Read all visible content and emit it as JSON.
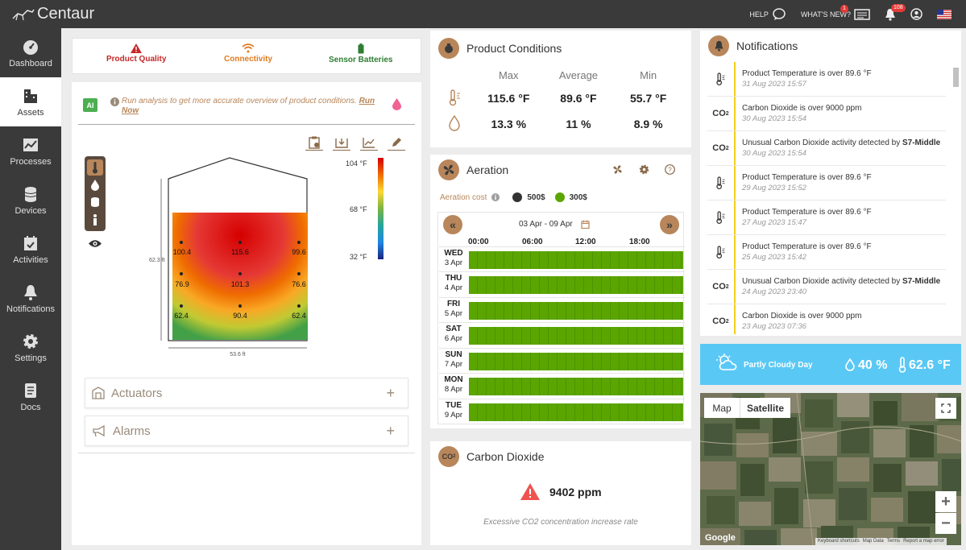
{
  "app": {
    "name": "Centaur"
  },
  "topbar": {
    "help": "HELP",
    "whats_new": "WHAT'S NEW?",
    "whats_new_badge": "1",
    "bell_badge": "108"
  },
  "sidebar": {
    "items": [
      {
        "label": "Dashboard",
        "icon": "gauge-icon"
      },
      {
        "label": "Assets",
        "icon": "building-icon"
      },
      {
        "label": "Processes",
        "icon": "chart-line-icon"
      },
      {
        "label": "Devices",
        "icon": "database-icon"
      },
      {
        "label": "Activities",
        "icon": "calendar-check-icon"
      },
      {
        "label": "Notifications",
        "icon": "bell-icon"
      },
      {
        "label": "Settings",
        "icon": "gear-icon"
      },
      {
        "label": "Docs",
        "icon": "document-icon"
      }
    ]
  },
  "kpis": [
    {
      "label": "Product Quality",
      "color": "#c62828"
    },
    {
      "label": "Connectivity",
      "color": "#e07a1f"
    },
    {
      "label": "Sensor Batteries",
      "color": "#2e7d32"
    }
  ],
  "ai": {
    "badge": "AI",
    "text": "Run analysis to get more accurate overview of product conditions.",
    "link": "Run Now"
  },
  "heatmap": {
    "legend_max": "104 °F",
    "legend_mid": "68 °F",
    "legend_min": "32 °F",
    "height_label": "62.3 ft",
    "width_label": "53.6 ft",
    "readings": [
      "100.4",
      "115.6",
      "99.6",
      "76.9",
      "101.3",
      "76.6",
      "62.4",
      "90.4",
      "62.4"
    ]
  },
  "accordions": {
    "actuators": "Actuators",
    "alarms": "Alarms"
  },
  "product_conditions": {
    "title": "Product Conditions",
    "headers": [
      "Max",
      "Average",
      "Min"
    ],
    "temperature": [
      "115.6 °F",
      "89.6 °F",
      "55.7 °F"
    ],
    "moisture": [
      "13.3 %",
      "11 %",
      "8.9 %"
    ]
  },
  "aeration": {
    "title": "Aeration",
    "cost_label": "Aeration cost",
    "legend": [
      {
        "label": "500$",
        "color": "#333333"
      },
      {
        "label": "300$",
        "color": "#5aa500"
      }
    ],
    "range": "03 Apr - 09 Apr",
    "times": [
      "00:00",
      "06:00",
      "12:00",
      "18:00"
    ],
    "days": [
      {
        "day": "WED",
        "date": "3 Apr"
      },
      {
        "day": "THU",
        "date": "4 Apr"
      },
      {
        "day": "FRI",
        "date": "5 Apr"
      },
      {
        "day": "SAT",
        "date": "6 Apr"
      },
      {
        "day": "SUN",
        "date": "7 Apr"
      },
      {
        "day": "MON",
        "date": "8 Apr"
      },
      {
        "day": "TUE",
        "date": "9 Apr"
      }
    ]
  },
  "co2": {
    "title": "Carbon Dioxide",
    "value": "9402 ppm",
    "note": "Excessive CO2 concentration increase rate"
  },
  "notifications": {
    "title": "Notifications",
    "items": [
      {
        "type": "temp",
        "text": "Product Temperature is over 89.6 °F",
        "bold": "",
        "date": "31 Aug 2023 15:57"
      },
      {
        "type": "co2",
        "text": "Carbon Dioxide is over 9000 ppm",
        "bold": "",
        "date": "30 Aug 2023 15:54"
      },
      {
        "type": "co2",
        "text": "Unusual Carbon Dioxide activity detected by ",
        "bold": "S7-Middle",
        "date": "30 Aug 2023 15:54"
      },
      {
        "type": "temp",
        "text": "Product Temperature is over 89.6 °F",
        "bold": "",
        "date": "29 Aug 2023 15:52"
      },
      {
        "type": "temp",
        "text": "Product Temperature is over 89.6 °F",
        "bold": "",
        "date": "27 Aug 2023 15:47"
      },
      {
        "type": "temp",
        "text": "Product Temperature is over 89.6 °F",
        "bold": "",
        "date": "25 Aug 2023 15:42"
      },
      {
        "type": "co2",
        "text": "Unusual Carbon Dioxide activity detected by ",
        "bold": "S7-Middle",
        "date": "24 Aug 2023 23:40"
      },
      {
        "type": "co2",
        "text": "Carbon Dioxide is over 9000 ppm",
        "bold": "",
        "date": "23 Aug 2023 07:36"
      }
    ]
  },
  "weather": {
    "condition": "Partly Cloudy Day",
    "humidity": "40 %",
    "temperature": "62.6 °F"
  },
  "map": {
    "tab_map": "Map",
    "tab_satellite": "Satellite",
    "google": "Google",
    "footer": [
      "Keyboard shortcuts",
      "Map Data",
      "Terms",
      "Report a map error"
    ]
  }
}
